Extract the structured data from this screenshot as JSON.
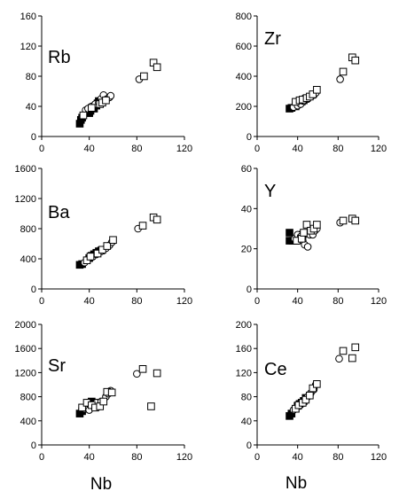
{
  "chart_data": [
    {
      "type": "scatter",
      "label": "Rb",
      "xlabel": "",
      "xlim": [
        0,
        120
      ],
      "ylim": [
        0,
        160
      ],
      "xticks": [
        "0",
        "40",
        "80",
        "120"
      ],
      "yticks": [
        "0",
        "40",
        "80",
        "120",
        "160"
      ],
      "series": [
        {
          "marker": "filled-square",
          "points": [
            [
              32,
              17
            ],
            [
              33,
              22
            ],
            [
              34,
              25
            ],
            [
              40,
              31
            ],
            [
              41,
              34
            ],
            [
              44,
              37
            ],
            [
              46,
              41
            ],
            [
              47,
              44
            ],
            [
              48,
              47
            ]
          ]
        },
        {
          "marker": "open-circle",
          "points": [
            [
              37,
              35
            ],
            [
              39,
              37
            ],
            [
              42,
              40
            ],
            [
              45,
              43
            ],
            [
              48,
              45
            ],
            [
              50,
              50
            ],
            [
              52,
              55
            ],
            [
              55,
              50
            ],
            [
              57,
              52
            ],
            [
              58,
              54
            ],
            [
              82,
              76
            ]
          ]
        },
        {
          "marker": "open-square",
          "points": [
            [
              35,
              28
            ],
            [
              42,
              38
            ],
            [
              49,
              43
            ],
            [
              51,
              45
            ],
            [
              54,
              48
            ],
            [
              86,
              80
            ],
            [
              94,
              98
            ],
            [
              97,
              92
            ]
          ]
        }
      ]
    },
    {
      "type": "scatter",
      "label": "Zr",
      "xlabel": "",
      "xlim": [
        0,
        120
      ],
      "ylim": [
        0,
        800
      ],
      "xticks": [
        "0",
        "40",
        "80",
        "120"
      ],
      "yticks": [
        "0",
        "200",
        "400",
        "600",
        "800"
      ],
      "series": [
        {
          "marker": "filled-square",
          "points": [
            [
              32,
              185
            ],
            [
              34,
              190
            ],
            [
              38,
              200
            ],
            [
              40,
              215
            ],
            [
              42,
              225
            ],
            [
              44,
              232
            ],
            [
              46,
              240
            ],
            [
              48,
              250
            ]
          ]
        },
        {
          "marker": "open-circle",
          "points": [
            [
              36,
              195
            ],
            [
              40,
              205
            ],
            [
              43,
              215
            ],
            [
              46,
              235
            ],
            [
              50,
              250
            ],
            [
              53,
              265
            ],
            [
              56,
              275
            ],
            [
              58,
              290
            ],
            [
              82,
              380
            ]
          ]
        },
        {
          "marker": "open-square",
          "points": [
            [
              38,
              230
            ],
            [
              42,
              240
            ],
            [
              45,
              245
            ],
            [
              49,
              255
            ],
            [
              52,
              265
            ],
            [
              55,
              280
            ],
            [
              59,
              310
            ],
            [
              85,
              430
            ],
            [
              94,
              525
            ],
            [
              97,
              505
            ]
          ]
        }
      ]
    },
    {
      "type": "scatter",
      "label": "Ba",
      "xlabel": "",
      "xlim": [
        0,
        120
      ],
      "ylim": [
        0,
        1600
      ],
      "xticks": [
        "0",
        "40",
        "80",
        "120"
      ],
      "yticks": [
        "0",
        "400",
        "800",
        "1200",
        "1600"
      ],
      "series": [
        {
          "marker": "filled-square",
          "points": [
            [
              32,
              320
            ],
            [
              34,
              330
            ],
            [
              40,
              410
            ],
            [
              42,
              440
            ],
            [
              44,
              460
            ],
            [
              46,
              480
            ],
            [
              48,
              500
            ],
            [
              50,
              510
            ]
          ]
        },
        {
          "marker": "open-circle",
          "points": [
            [
              36,
              350
            ],
            [
              39,
              390
            ],
            [
              43,
              430
            ],
            [
              46,
              460
            ],
            [
              50,
              500
            ],
            [
              54,
              540
            ],
            [
              57,
              580
            ],
            [
              59,
              620
            ],
            [
              81,
              800
            ]
          ]
        },
        {
          "marker": "open-square",
          "points": [
            [
              38,
              380
            ],
            [
              41,
              430
            ],
            [
              47,
              470
            ],
            [
              51,
              520
            ],
            [
              55,
              570
            ],
            [
              60,
              650
            ],
            [
              85,
              840
            ],
            [
              94,
              950
            ],
            [
              97,
              920
            ]
          ]
        }
      ]
    },
    {
      "type": "scatter",
      "label": "Y",
      "xlabel": "",
      "xlim": [
        0,
        120
      ],
      "ylim": [
        0,
        60
      ],
      "xticks": [
        "0",
        "40",
        "80",
        "120"
      ],
      "yticks": [
        "0",
        "20",
        "40",
        "60"
      ],
      "series": [
        {
          "marker": "filled-square",
          "points": [
            [
              32,
              24
            ],
            [
              32,
              28
            ],
            [
              35,
              24
            ],
            [
              38,
              24
            ],
            [
              40,
              25
            ],
            [
              42,
              26
            ],
            [
              44,
              25
            ],
            [
              45,
              27
            ]
          ]
        },
        {
          "marker": "open-circle",
          "points": [
            [
              37,
              25
            ],
            [
              40,
              27
            ],
            [
              43,
              26
            ],
            [
              45,
              24
            ],
            [
              47,
              22
            ],
            [
              50,
              21
            ],
            [
              52,
              27
            ],
            [
              55,
              27
            ],
            [
              57,
              29
            ],
            [
              59,
              30
            ],
            [
              82,
              33
            ]
          ]
        },
        {
          "marker": "open-square",
          "points": [
            [
              39,
              24
            ],
            [
              44,
              25
            ],
            [
              46,
              28
            ],
            [
              49,
              32
            ],
            [
              53,
              29
            ],
            [
              56,
              30
            ],
            [
              59,
              32
            ],
            [
              85,
              34
            ],
            [
              94,
              35
            ],
            [
              97,
              34
            ]
          ]
        }
      ]
    },
    {
      "type": "scatter",
      "label": "Sr",
      "xlabel": "Nb",
      "xlim": [
        0,
        120
      ],
      "ylim": [
        0,
        2000
      ],
      "xticks": [
        "0",
        "40",
        "80",
        "120"
      ],
      "yticks": [
        "0",
        "400",
        "800",
        "1200",
        "1600",
        "2000"
      ],
      "series": [
        {
          "marker": "filled-square",
          "points": [
            [
              32,
              520
            ],
            [
              34,
              560
            ],
            [
              38,
              600
            ],
            [
              40,
              700
            ],
            [
              42,
              720
            ],
            [
              44,
              690
            ],
            [
              46,
              640
            ],
            [
              48,
              700
            ]
          ]
        },
        {
          "marker": "open-circle",
          "points": [
            [
              36,
              600
            ],
            [
              40,
              580
            ],
            [
              43,
              650
            ],
            [
              46,
              700
            ],
            [
              50,
              720
            ],
            [
              54,
              800
            ],
            [
              56,
              850
            ],
            [
              58,
              900
            ],
            [
              80,
              1180
            ]
          ]
        },
        {
          "marker": "open-square",
          "points": [
            [
              34,
              620
            ],
            [
              38,
              700
            ],
            [
              42,
              660
            ],
            [
              45,
              620
            ],
            [
              49,
              640
            ],
            [
              52,
              720
            ],
            [
              55,
              880
            ],
            [
              59,
              870
            ],
            [
              85,
              1260
            ],
            [
              92,
              640
            ],
            [
              97,
              1190
            ]
          ]
        }
      ]
    },
    {
      "type": "scatter",
      "label": "Ce",
      "xlabel": "Nb",
      "xlim": [
        0,
        120
      ],
      "ylim": [
        0,
        200
      ],
      "xticks": [
        "0",
        "40",
        "80",
        "120"
      ],
      "yticks": [
        "0",
        "40",
        "80",
        "120",
        "160",
        "200"
      ],
      "series": [
        {
          "marker": "filled-square",
          "points": [
            [
              32,
              48
            ],
            [
              34,
              52
            ],
            [
              38,
              60
            ],
            [
              40,
              65
            ],
            [
              42,
              68
            ],
            [
              44,
              70
            ],
            [
              46,
              73
            ],
            [
              48,
              78
            ]
          ]
        },
        {
          "marker": "open-circle",
          "points": [
            [
              36,
              58
            ],
            [
              40,
              64
            ],
            [
              43,
              68
            ],
            [
              46,
              72
            ],
            [
              50,
              80
            ],
            [
              53,
              86
            ],
            [
              56,
              92
            ],
            [
              58,
              100
            ],
            [
              81,
              143
            ]
          ]
        },
        {
          "marker": "open-square",
          "points": [
            [
              38,
              60
            ],
            [
              41,
              66
            ],
            [
              45,
              70
            ],
            [
              48,
              75
            ],
            [
              52,
              82
            ],
            [
              55,
              94
            ],
            [
              59,
              101
            ],
            [
              85,
              156
            ],
            [
              94,
              144
            ],
            [
              97,
              162
            ]
          ]
        }
      ]
    }
  ]
}
